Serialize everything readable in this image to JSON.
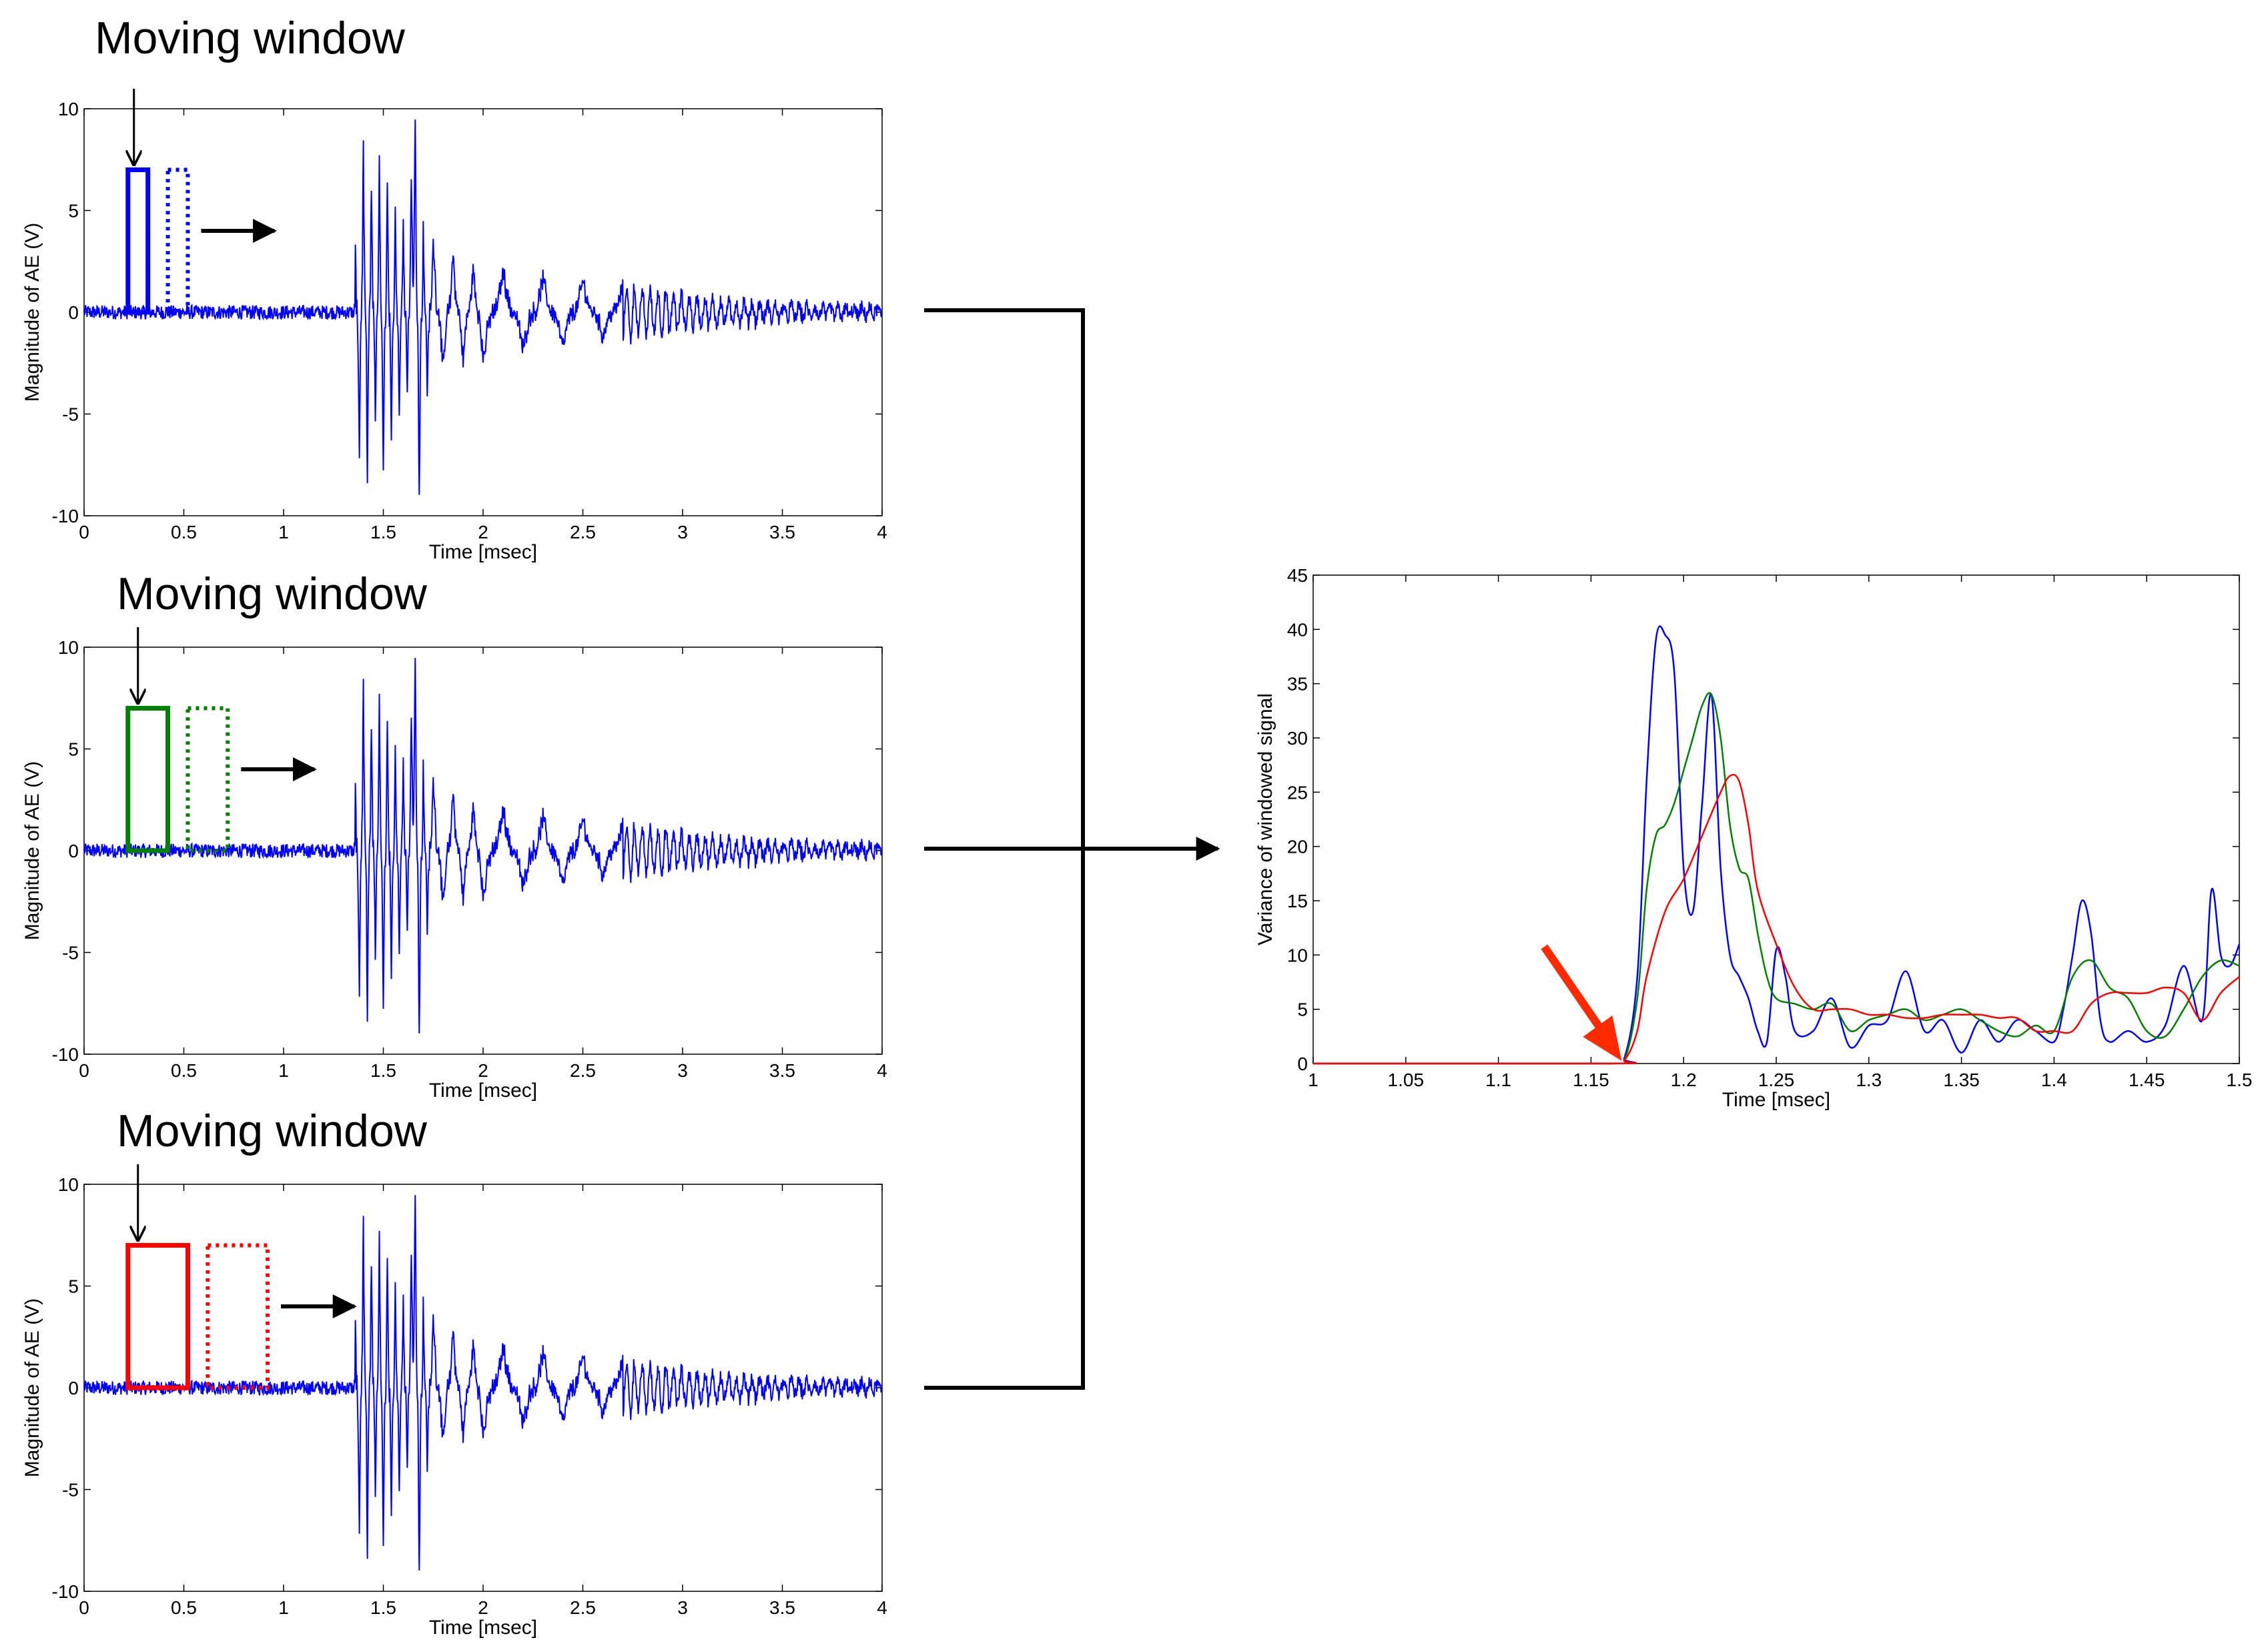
{
  "panels": [
    {
      "title": "Moving window",
      "xlabel": "Time [msec]",
      "ylabel": "Magnitude of AE (V)",
      "window_color": "#0000ff",
      "window_start": 0.22,
      "window_end": 0.32,
      "next_start": 0.42,
      "next_end": 0.52,
      "window_top": 7,
      "window_bottom": 0
    },
    {
      "title": "Moving window",
      "xlabel": "Time [msec]",
      "ylabel": "Magnitude of AE (V)",
      "window_color": "#008000",
      "window_start": 0.22,
      "window_end": 0.42,
      "next_start": 0.52,
      "next_end": 0.72,
      "window_top": 7,
      "window_bottom": 0
    },
    {
      "title": "Moving window",
      "xlabel": "Time [msec]",
      "ylabel": "Magnitude of AE (V)",
      "window_color": "#ff0000",
      "window_start": 0.22,
      "window_end": 0.52,
      "next_start": 0.62,
      "next_end": 0.92,
      "window_top": 7,
      "window_bottom": 0
    }
  ],
  "chart_data": [
    {
      "type": "line",
      "xlabel": "Time [msec]",
      "ylabel": "Magnitude of AE (V)",
      "xlim": [
        0,
        4
      ],
      "ylim": [
        -10,
        10
      ],
      "xticks": [
        "0",
        "0.5",
        "1",
        "1.5",
        "2",
        "2.5",
        "3",
        "3.5",
        "4"
      ],
      "yticks": [
        "10",
        "5",
        "0",
        "-5",
        "-10"
      ],
      "series_color": "#0000ff",
      "noise_level": 0.35,
      "onset": 1.35,
      "burst_peaks": [
        [
          1.36,
          3.0
        ],
        [
          1.38,
          -7.0
        ],
        [
          1.4,
          8.2
        ],
        [
          1.42,
          -8.3
        ],
        [
          1.44,
          6.0
        ],
        [
          1.46,
          -5.5
        ],
        [
          1.48,
          7.2
        ],
        [
          1.5,
          -8.3
        ],
        [
          1.52,
          6.5
        ],
        [
          1.54,
          -6.8
        ],
        [
          1.56,
          5.0
        ],
        [
          1.58,
          -5.0
        ],
        [
          1.6,
          4.5
        ],
        [
          1.62,
          -4.0
        ],
        [
          1.64,
          6.0
        ],
        [
          1.66,
          9.3
        ],
        [
          1.68,
          -9.2
        ],
        [
          1.7,
          4.0
        ],
        [
          1.72,
          -3.5
        ],
        [
          1.75,
          3.5
        ],
        [
          1.8,
          -3.0
        ],
        [
          1.85,
          2.8
        ],
        [
          1.9,
          -2.5
        ],
        [
          1.95,
          2.2
        ],
        [
          2.0,
          -2.3
        ],
        [
          2.1,
          2.0
        ],
        [
          2.2,
          -1.8
        ],
        [
          2.3,
          1.6
        ],
        [
          2.4,
          -1.7
        ],
        [
          2.5,
          1.5
        ],
        [
          2.6,
          -1.2
        ],
        [
          2.7,
          1.2
        ]
      ]
    },
    {
      "type": "line",
      "xlabel": "Time [msec]",
      "ylabel": "Variance of windowed signal",
      "xlim": [
        1,
        1.5
      ],
      "ylim": [
        0,
        45
      ],
      "xticks": [
        "1",
        "1.05",
        "1.1",
        "1.15",
        "1.2",
        "1.25",
        "1.3",
        "1.35",
        "1.4",
        "1.45",
        "1.5"
      ],
      "yticks": [
        "45",
        "40",
        "35",
        "30",
        "25",
        "20",
        "15",
        "10",
        "5",
        "0"
      ],
      "series": [
        {
          "color": "#0000ff",
          "x": [
            1.0,
            1.16,
            1.168,
            1.175,
            1.18,
            1.185,
            1.19,
            1.195,
            1.2,
            1.205,
            1.21,
            1.215,
            1.22,
            1.225,
            1.23,
            1.235,
            1.24,
            1.245,
            1.25,
            1.255,
            1.26,
            1.27,
            1.28,
            1.29,
            1.3,
            1.31,
            1.32,
            1.33,
            1.34,
            1.35,
            1.36,
            1.37,
            1.38,
            1.39,
            1.4,
            1.405,
            1.41,
            1.415,
            1.42,
            1.425,
            1.43,
            1.44,
            1.45,
            1.46,
            1.47,
            1.48,
            1.485,
            1.49,
            1.495,
            1.5
          ],
          "y": [
            0,
            0,
            0.5,
            8,
            26,
            39,
            39.5,
            36,
            18,
            14,
            24,
            34,
            18,
            10,
            8,
            6,
            3,
            2,
            10.5,
            8,
            3,
            3,
            6,
            1.5,
            3.5,
            4,
            8.5,
            3,
            4,
            1,
            4,
            2,
            4,
            3,
            2,
            5,
            10,
            15,
            12,
            4,
            2,
            3,
            2,
            3.5,
            9,
            4,
            16,
            10,
            9,
            11
          ]
        },
        {
          "color": "#008000",
          "x": [
            1.0,
            1.16,
            1.168,
            1.175,
            1.18,
            1.185,
            1.19,
            1.195,
            1.2,
            1.205,
            1.21,
            1.215,
            1.22,
            1.225,
            1.23,
            1.235,
            1.24,
            1.245,
            1.25,
            1.26,
            1.27,
            1.28,
            1.29,
            1.3,
            1.31,
            1.32,
            1.33,
            1.34,
            1.35,
            1.36,
            1.37,
            1.38,
            1.39,
            1.4,
            1.41,
            1.42,
            1.43,
            1.44,
            1.45,
            1.46,
            1.47,
            1.48,
            1.49,
            1.5
          ],
          "y": [
            0,
            0,
            0.3,
            6,
            16,
            21,
            22,
            24,
            27,
            30,
            33,
            34,
            30,
            22,
            18,
            17,
            12,
            8,
            6,
            5.5,
            5,
            5.5,
            3,
            4,
            4.5,
            5,
            4,
            4.5,
            5,
            4,
            3,
            2.5,
            3.5,
            3,
            8,
            9.5,
            7,
            6,
            3,
            2.5,
            5,
            8,
            9.5,
            9
          ]
        },
        {
          "color": "#ff0000",
          "x": [
            1.0,
            1.16,
            1.168,
            1.175,
            1.18,
            1.19,
            1.2,
            1.21,
            1.22,
            1.225,
            1.23,
            1.235,
            1.24,
            1.25,
            1.26,
            1.27,
            1.28,
            1.29,
            1.3,
            1.31,
            1.32,
            1.33,
            1.34,
            1.35,
            1.36,
            1.37,
            1.38,
            1.39,
            1.4,
            1.41,
            1.42,
            1.43,
            1.44,
            1.45,
            1.46,
            1.47,
            1.48,
            1.49,
            1.5
          ],
          "y": [
            0,
            0,
            0.3,
            3,
            8,
            14,
            17,
            21,
            25,
            26.5,
            26,
            22,
            16,
            11,
            7,
            5,
            5,
            5,
            4.5,
            4.5,
            4.2,
            4.2,
            4.5,
            4.5,
            4.5,
            4.2,
            4.2,
            3,
            3,
            3,
            5.5,
            6.5,
            6.5,
            6.5,
            7,
            6.5,
            4,
            6.5,
            8
          ]
        }
      ],
      "onset_marker": {
        "x": 1.168,
        "y": 0,
        "color": "#ff2a00"
      }
    }
  ]
}
